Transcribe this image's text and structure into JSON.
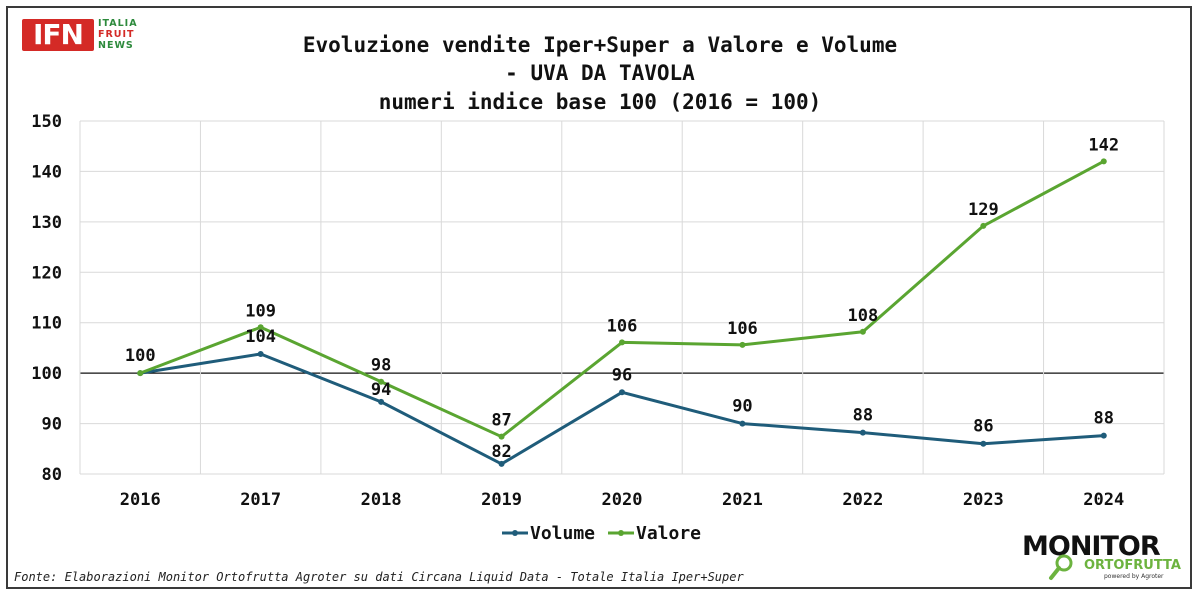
{
  "title_lines": [
    "Evoluzione vendite Iper+Super a Valore e Volume",
    "- UVA DA TAVOLA",
    "numeri indice base 100 (2016 = 100)"
  ],
  "logo_left": {
    "main": "IFN",
    "side": [
      "ITALIA",
      "FRUIT",
      "NEWS"
    ]
  },
  "logo_right": {
    "top": "MONITOR",
    "bottom": "ORTOFRUTTA",
    "powered": "powered by Agroter"
  },
  "source": "Fonte: Elaborazioni Monitor Ortofrutta Agroter su dati Circana Liquid Data - Totale Italia Iper+Super",
  "chart_data": {
    "type": "line",
    "title": "Evoluzione vendite Iper+Super a Valore e Volume - UVA DA TAVOLA numeri indice base 100 (2016 = 100)",
    "categories": [
      "2016",
      "2017",
      "2018",
      "2019",
      "2020",
      "2021",
      "2022",
      "2023",
      "2024"
    ],
    "series": [
      {
        "name": "Volume",
        "color": "#1f5c7a",
        "values": [
          100,
          104,
          94,
          82,
          96,
          90,
          88,
          86,
          88
        ],
        "labels": [
          "100",
          "104",
          "94",
          "82",
          "96",
          "90",
          "88",
          "86",
          "88"
        ],
        "plot_values": [
          100,
          103.8,
          94.3,
          82,
          96.2,
          90,
          88.2,
          86,
          87.6
        ]
      },
      {
        "name": "Valore",
        "color": "#5aa531",
        "values": [
          100,
          109,
          98,
          87,
          106,
          106,
          108,
          129,
          142
        ],
        "labels": [
          "",
          "109",
          "98",
          "87",
          "106",
          "106",
          "108",
          "129",
          "142"
        ],
        "plot_values": [
          100,
          109.1,
          98.3,
          87.4,
          106.1,
          105.6,
          108.2,
          129.2,
          142
        ]
      }
    ],
    "ylim": [
      80,
      150
    ],
    "yticks": [
      "80",
      "90",
      "100",
      "110",
      "120",
      "130",
      "140",
      "150"
    ],
    "reference_line": 100,
    "grid": true,
    "legend": "bottom"
  }
}
